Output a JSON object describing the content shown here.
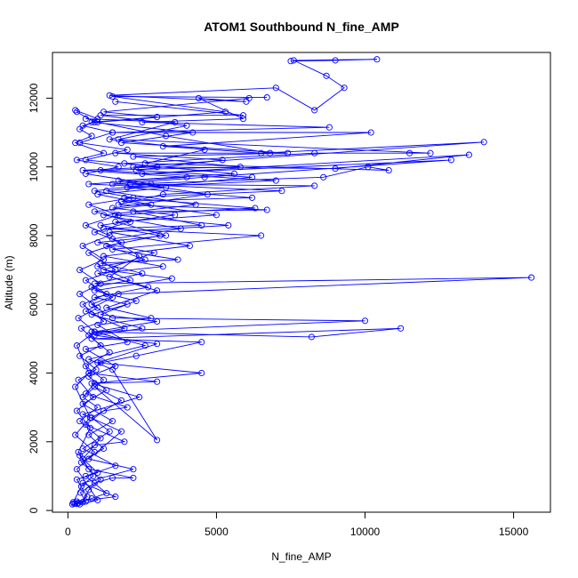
{
  "chart_data": {
    "type": "line",
    "title": "ATOM1 Southbound N_fine_AMP",
    "xlabel": "N_fine_AMP",
    "ylabel": "Altitude (m)",
    "xlim": [
      -520,
      16240
    ],
    "ylim": [
      -50,
      13330
    ],
    "x_ticks": [
      "0",
      "5000",
      "10000",
      "15000"
    ],
    "x_tick_values": [
      0,
      5000,
      10000,
      15000
    ],
    "y_ticks": [
      "0",
      "2000",
      "4000",
      "6000",
      "8000",
      "10000",
      "12000"
    ],
    "y_tick_values": [
      0,
      2000,
      4000,
      6000,
      8000,
      10000,
      12000
    ],
    "series_color": "#0000ff",
    "marker": "open-circle",
    "grid": false,
    "legend": "none",
    "series": [
      {
        "points": [
          [
            150,
            180
          ],
          [
            350,
            220
          ],
          [
            600,
            260
          ],
          [
            420,
            520
          ],
          [
            900,
            800
          ],
          [
            1500,
            950
          ],
          [
            2200,
            950
          ],
          [
            700,
            1200
          ],
          [
            400,
            1600
          ],
          [
            900,
            1900
          ],
          [
            1900,
            2000
          ],
          [
            600,
            2500
          ],
          [
            1200,
            2900
          ],
          [
            2000,
            3000
          ],
          [
            600,
            3400
          ],
          [
            900,
            3700
          ],
          [
            3000,
            3750
          ],
          [
            700,
            4000
          ],
          [
            1100,
            4300
          ],
          [
            2300,
            4500
          ],
          [
            4500,
            4900
          ],
          [
            800,
            5000
          ],
          [
            11200,
            5300
          ],
          [
            8200,
            5050
          ],
          [
            800,
            5200
          ],
          [
            10000,
            5520
          ],
          [
            1500,
            5600
          ],
          [
            800,
            6000
          ],
          [
            1700,
            6300
          ],
          [
            15600,
            6780
          ],
          [
            900,
            6600
          ],
          [
            2500,
            6900
          ],
          [
            1100,
            7200
          ],
          [
            3700,
            7300
          ],
          [
            1500,
            7600
          ],
          [
            6500,
            8000
          ],
          [
            1200,
            8200
          ],
          [
            4500,
            8300
          ],
          [
            2200,
            8700
          ],
          [
            6700,
            8750
          ],
          [
            1700,
            8900
          ],
          [
            3200,
            9200
          ],
          [
            8300,
            9450
          ],
          [
            1500,
            9500
          ],
          [
            4600,
            9700
          ],
          [
            12900,
            10200
          ],
          [
            2500,
            9800
          ],
          [
            13500,
            10350
          ],
          [
            9000,
            9950
          ],
          [
            2200,
            10000
          ],
          [
            14000,
            10720
          ],
          [
            6500,
            10400
          ],
          [
            3200,
            10600
          ],
          [
            10200,
            11000
          ],
          [
            1500,
            11000
          ],
          [
            8800,
            11150
          ],
          [
            2500,
            11300
          ],
          [
            5900,
            11400
          ],
          [
            4400,
            12000
          ],
          [
            6000,
            11900
          ],
          [
            1400,
            12080
          ],
          [
            7000,
            12300
          ],
          [
            8300,
            11650
          ],
          [
            9300,
            12300
          ],
          [
            8700,
            12650
          ],
          [
            7600,
            13100
          ],
          [
            10400,
            13130
          ],
          [
            9000,
            13100
          ],
          [
            7500,
            13080
          ]
        ]
      },
      {
        "points": [
          [
            200,
            200
          ],
          [
            500,
            240
          ],
          [
            700,
            600
          ],
          [
            1100,
            900
          ],
          [
            450,
            1400
          ],
          [
            1200,
            1800
          ],
          [
            700,
            2200
          ],
          [
            1500,
            2600
          ],
          [
            500,
            3100
          ],
          [
            1300,
            3500
          ],
          [
            700,
            3900
          ],
          [
            1600,
            4200
          ],
          [
            600,
            4700
          ],
          [
            2000,
            4900
          ],
          [
            1000,
            5400
          ],
          [
            2800,
            5600
          ],
          [
            1300,
            5900
          ],
          [
            3000,
            6400
          ],
          [
            1400,
            6800
          ],
          [
            2400,
            7400
          ],
          [
            1500,
            7900
          ],
          [
            3800,
            8200
          ],
          [
            1200,
            8600
          ],
          [
            4300,
            8900
          ],
          [
            1300,
            9300
          ],
          [
            6200,
            9700
          ],
          [
            2300,
            9900
          ],
          [
            5200,
            10200
          ],
          [
            1600,
            10400
          ],
          [
            6800,
            10400
          ],
          [
            3300,
            10900
          ],
          [
            1000,
            11300
          ],
          [
            5300,
            11600
          ],
          [
            1500,
            12050
          ],
          [
            6700,
            12020
          ]
        ]
      },
      {
        "points": [
          [
            300,
            190
          ],
          [
            800,
            350
          ],
          [
            1300,
            500
          ],
          [
            600,
            1000
          ],
          [
            1600,
            1300
          ],
          [
            500,
            1800
          ],
          [
            1400,
            2300
          ],
          [
            800,
            2700
          ],
          [
            1800,
            3200
          ],
          [
            900,
            3600
          ],
          [
            3000,
            2050
          ],
          [
            1500,
            4100
          ],
          [
            700,
            4400
          ],
          [
            2600,
            4800
          ],
          [
            900,
            5200
          ],
          [
            3000,
            5500
          ],
          [
            1100,
            5700
          ],
          [
            2300,
            6100
          ],
          [
            900,
            6400
          ],
          [
            3500,
            6750
          ],
          [
            1200,
            7000
          ],
          [
            2900,
            7500
          ],
          [
            1000,
            7800
          ],
          [
            3300,
            8000
          ],
          [
            1600,
            8400
          ],
          [
            5000,
            8600
          ],
          [
            1800,
            9000
          ],
          [
            6200,
            9100
          ],
          [
            2000,
            9400
          ],
          [
            7000,
            9600
          ],
          [
            1100,
            9900
          ],
          [
            5800,
            10000
          ],
          [
            2200,
            10300
          ],
          [
            7400,
            10400
          ],
          [
            1800,
            10700
          ],
          [
            4200,
            11000
          ],
          [
            800,
            11300
          ],
          [
            3000,
            11450
          ],
          [
            1200,
            11600
          ],
          [
            6100,
            12000
          ]
        ]
      },
      {
        "points": [
          [
            250,
            210
          ],
          [
            650,
            400
          ],
          [
            300,
            900
          ],
          [
            1000,
            1100
          ],
          [
            500,
            1500
          ],
          [
            1100,
            2100
          ],
          [
            400,
            2600
          ],
          [
            1000,
            3000
          ],
          [
            500,
            3300
          ],
          [
            1200,
            3800
          ],
          [
            600,
            4200
          ],
          [
            1400,
            4600
          ],
          [
            700,
            5100
          ],
          [
            1900,
            5300
          ],
          [
            600,
            5800
          ],
          [
            1500,
            6200
          ],
          [
            800,
            6500
          ],
          [
            2100,
            6700
          ],
          [
            1000,
            7100
          ],
          [
            2600,
            7300
          ],
          [
            1300,
            7700
          ],
          [
            3100,
            8000
          ],
          [
            1100,
            8300
          ],
          [
            3600,
            8600
          ],
          [
            1500,
            8800
          ],
          [
            4700,
            9200
          ],
          [
            1700,
            9600
          ],
          [
            5600,
            9800
          ],
          [
            1900,
            10100
          ],
          [
            8300,
            10400
          ],
          [
            11500,
            10400
          ],
          [
            12200,
            10400
          ],
          [
            1700,
            10800
          ],
          [
            4000,
            11200
          ],
          [
            1100,
            11500
          ],
          [
            5900,
            11500
          ],
          [
            1600,
            11900
          ]
        ]
      },
      {
        "points": [
          [
            180,
            240
          ],
          [
            450,
            700
          ],
          [
            850,
            1000
          ],
          [
            350,
            1700
          ],
          [
            750,
            2400
          ],
          [
            300,
            2900
          ],
          [
            850,
            3300
          ],
          [
            350,
            3800
          ],
          [
            950,
            4100
          ],
          [
            400,
            4500
          ],
          [
            1100,
            4800
          ],
          [
            450,
            5300
          ],
          [
            1200,
            5500
          ],
          [
            500,
            6000
          ],
          [
            1300,
            6300
          ],
          [
            600,
            6700
          ],
          [
            1600,
            7000
          ],
          [
            700,
            7500
          ],
          [
            1800,
            7800
          ],
          [
            900,
            8100
          ],
          [
            2100,
            8400
          ],
          [
            900,
            8700
          ],
          [
            2800,
            8900
          ],
          [
            1000,
            9200
          ],
          [
            3300,
            9400
          ],
          [
            700,
            9500
          ],
          [
            4000,
            9700
          ],
          [
            500,
            9900
          ],
          [
            3000,
            10000
          ],
          [
            600,
            10200
          ],
          [
            2000,
            10500
          ],
          [
            400,
            10700
          ],
          [
            1500,
            11000
          ],
          [
            500,
            11200
          ],
          [
            900,
            11300
          ],
          [
            300,
            11600
          ]
        ]
      },
      {
        "points": [
          [
            400,
            180
          ],
          [
            1000,
            300
          ],
          [
            300,
            1200
          ],
          [
            900,
            1700
          ],
          [
            250,
            2200
          ],
          [
            750,
            2700
          ],
          [
            250,
            3600
          ],
          [
            700,
            4000
          ],
          [
            300,
            4800
          ],
          [
            900,
            5200
          ],
          [
            350,
            5600
          ],
          [
            1000,
            5900
          ],
          [
            400,
            6300
          ],
          [
            1100,
            6600
          ],
          [
            400,
            7000
          ],
          [
            1200,
            7300
          ],
          [
            500,
            7700
          ],
          [
            1400,
            8000
          ],
          [
            600,
            8300
          ],
          [
            1700,
            8600
          ],
          [
            700,
            8900
          ],
          [
            2200,
            9100
          ],
          [
            900,
            9300
          ],
          [
            2800,
            9500
          ],
          [
            600,
            9800
          ],
          [
            1700,
            10000
          ],
          [
            300,
            10200
          ],
          [
            1200,
            10400
          ],
          [
            250,
            10700
          ],
          [
            800,
            10900
          ],
          [
            400,
            11100
          ],
          [
            1000,
            11400
          ],
          [
            250,
            11650
          ]
        ]
      },
      {
        "points": [
          [
            300,
            260
          ],
          [
            1600,
            400
          ],
          [
            500,
            800
          ],
          [
            2200,
            1200
          ],
          [
            700,
            1500
          ],
          [
            1800,
            2300
          ],
          [
            500,
            2800
          ],
          [
            2400,
            3300
          ],
          [
            800,
            3700
          ],
          [
            4500,
            4000
          ],
          [
            1000,
            4300
          ],
          [
            3000,
            4850
          ],
          [
            900,
            5100
          ],
          [
            2500,
            5300
          ],
          [
            800,
            5700
          ],
          [
            2000,
            6000
          ],
          [
            900,
            6200
          ],
          [
            2700,
            6500
          ],
          [
            1000,
            6900
          ],
          [
            3200,
            7100
          ],
          [
            1200,
            7400
          ],
          [
            4100,
            7700
          ],
          [
            1400,
            8100
          ],
          [
            5400,
            8300
          ],
          [
            1600,
            8600
          ],
          [
            6300,
            8800
          ],
          [
            1900,
            9100
          ],
          [
            7200,
            9300
          ],
          [
            2100,
            9500
          ],
          [
            8600,
            9700
          ],
          [
            10100,
            10000
          ],
          [
            10800,
            9900
          ],
          [
            2600,
            10100
          ],
          [
            4600,
            10500
          ],
          [
            1400,
            10800
          ],
          [
            3600,
            11300
          ],
          [
            600,
            11400
          ]
        ]
      }
    ]
  }
}
